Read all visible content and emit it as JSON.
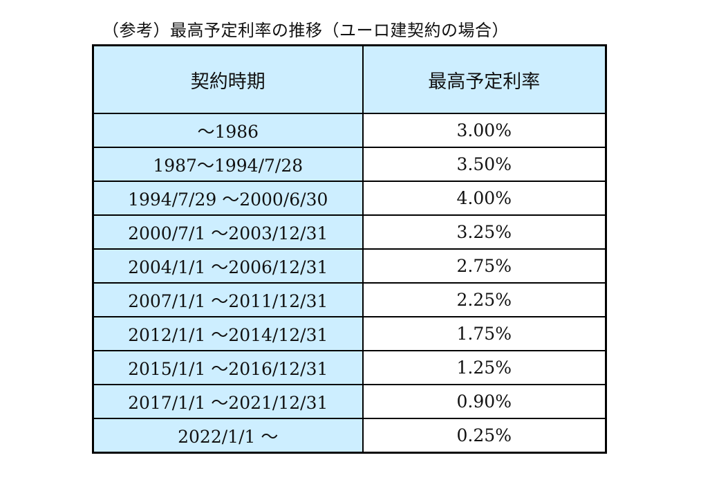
{
  "title": "（参考）最高予定利率の推移（ユーロ建契約の場合）",
  "table": {
    "headers": {
      "period": "契約時期",
      "rate": "最高予定利率"
    },
    "rows": [
      {
        "period": "～1986",
        "rate": "3.00%"
      },
      {
        "period": "1987～1994/7/28",
        "rate": "3.50%"
      },
      {
        "period": "1994/7/29 ～2000/6/30",
        "rate": "4.00%"
      },
      {
        "period": "2000/7/1 ～2003/12/31",
        "rate": "3.25%"
      },
      {
        "period": "2004/1/1 ～2006/12/31",
        "rate": "2.75%"
      },
      {
        "period": "2007/1/1 ～2011/12/31",
        "rate": "2.25%"
      },
      {
        "period": "2012/1/1 ～2014/12/31",
        "rate": "1.75%"
      },
      {
        "period": "2015/1/1 ～2016/12/31",
        "rate": "1.25%"
      },
      {
        "period": "2017/1/1 ～2021/12/31",
        "rate": "0.90%"
      },
      {
        "period": "2022/1/1 ～",
        "rate": "0.25%"
      }
    ]
  },
  "colors": {
    "period_cell_background": "#cdeeff",
    "rate_cell_background": "#ffffff",
    "border": "#000000"
  }
}
